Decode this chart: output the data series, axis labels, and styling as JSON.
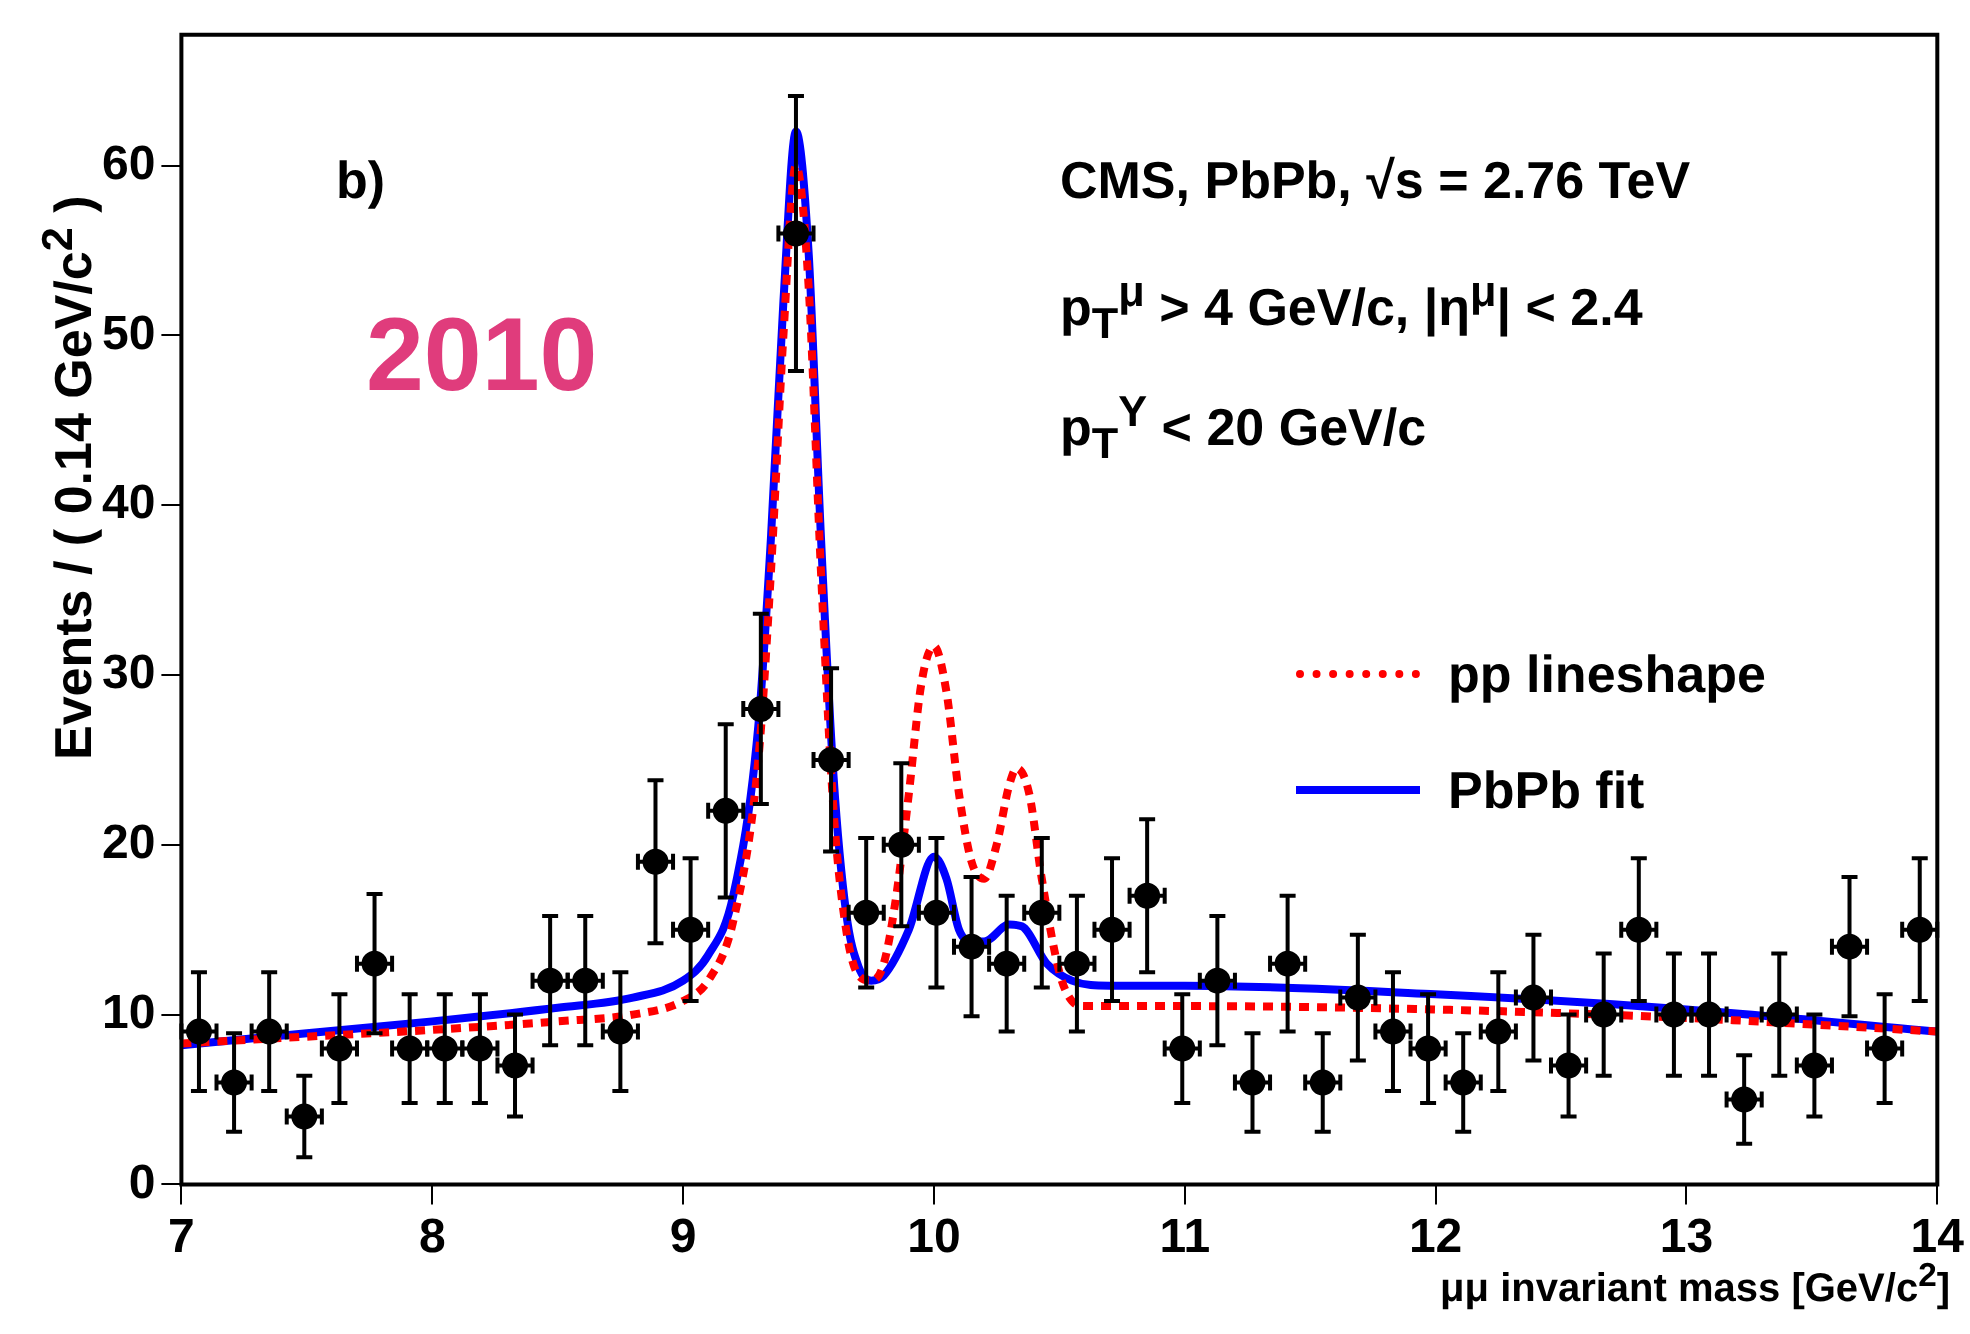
{
  "chart_data": {
    "type": "scatter",
    "xlabel": "μμ invariant mass [GeV/c$^{2}$]",
    "ylabel": "Events / ( 0.14 GeV/c$^{2}$ )",
    "annotations": [
      "b)",
      "2010",
      "CMS, PbPb, √s = 2.76 TeV",
      "p$_{T}$$^{μ}$ > 4 GeV/c, |η$^{μ}$| < 2.4",
      "p$_{T}$$^{Υ}$ < 20 GeV/c"
    ],
    "xlim": [
      7,
      14
    ],
    "ylim": [
      0,
      67.7
    ],
    "xticks": [
      7,
      8,
      9,
      10,
      11,
      12,
      13,
      14
    ],
    "yticks": [
      0,
      10,
      20,
      30,
      40,
      50,
      60
    ],
    "legend": "right",
    "series": [
      {
        "color": "#000000",
        "marker": "circle",
        "x": [
          7.07,
          7.21,
          7.35,
          7.49,
          7.63,
          7.77,
          7.91,
          8.05,
          8.19,
          8.33,
          8.47,
          8.61,
          8.75,
          8.89,
          9.03,
          9.17,
          9.31,
          9.45,
          9.59,
          9.73,
          9.87,
          10.01,
          10.15,
          10.29,
          10.43,
          10.57,
          10.71,
          10.85,
          10.99,
          11.13,
          11.27,
          11.41,
          11.55,
          11.69,
          11.83,
          11.97,
          12.11,
          12.25,
          12.39,
          12.53,
          12.67,
          12.81,
          12.95,
          13.09,
          13.23,
          13.37,
          13.51,
          13.65,
          13.79,
          13.93
        ],
        "values": [
          9,
          6,
          9,
          4,
          8,
          13,
          8,
          8,
          8,
          7,
          12,
          12,
          9,
          19,
          15,
          22,
          28,
          56,
          25,
          16,
          20,
          16,
          14,
          13,
          16,
          13,
          15,
          17,
          8,
          12,
          6,
          13,
          6,
          11,
          9,
          8,
          6,
          9,
          11,
          7,
          10,
          15,
          10,
          10,
          5,
          10,
          7,
          14,
          8,
          15
        ],
        "errors": [
          3.5,
          2.9,
          3.5,
          2.4,
          3.2,
          4.1,
          3.2,
          3.2,
          3.2,
          3,
          3.8,
          3.8,
          3.5,
          4.8,
          4.2,
          5.1,
          5.6,
          8.1,
          5.4,
          4.4,
          4.8,
          4.4,
          4.1,
          4,
          4.4,
          4,
          4.2,
          4.5,
          3.2,
          3.8,
          2.9,
          4,
          2.9,
          3.7,
          3.5,
          3.2,
          2.9,
          3.5,
          3.7,
          3,
          3.6,
          4.2,
          3.6,
          3.6,
          2.6,
          3.6,
          3,
          4.1,
          3.2,
          4.2
        ],
        "xerrors": [
          0.07,
          0.07,
          0.07,
          0.07,
          0.07,
          0.07,
          0.07,
          0.07,
          0.07,
          0.07,
          0.07,
          0.07,
          0.07,
          0.07,
          0.07,
          0.07,
          0.07,
          0.07,
          0.07,
          0.07,
          0.07,
          0.07,
          0.07,
          0.07,
          0.07,
          0.07,
          0.07,
          0.07,
          0.07,
          0.07,
          0.07,
          0.07,
          0.07,
          0.07,
          0.07,
          0.07,
          0.07,
          0.07,
          0.07,
          0.07,
          0.07,
          0.07,
          0.07,
          0.07,
          0.07,
          0.07,
          0.07,
          0.07,
          0.07,
          0.07
        ]
      },
      {
        "type": "line",
        "name": "pp lineshape",
        "color": "#ff0000",
        "marker": "none",
        "line_style": "dotted",
        "x": [
          7,
          7.5,
          8,
          8.5,
          8.8,
          9,
          9.1,
          9.2,
          9.3,
          9.35,
          9.4,
          9.45,
          9.5,
          9.55,
          9.6,
          9.65,
          9.7,
          9.75,
          9.8,
          9.85,
          9.9,
          9.95,
          10,
          10.05,
          10.1,
          10.15,
          10.2,
          10.25,
          10.3,
          10.33,
          10.38,
          10.43,
          10.5,
          10.55,
          10.6,
          11,
          12,
          13,
          14
        ],
        "values": [
          8.3,
          8.7,
          9.1,
          9.6,
          10,
          10.8,
          12,
          15.5,
          25,
          36,
          50,
          60,
          53,
          36,
          22,
          15,
          12.3,
          12,
          13,
          17,
          23,
          29.5,
          31.7,
          29,
          23,
          19,
          18,
          20,
          23.5,
          24.5,
          23,
          18,
          12.5,
          10.8,
          10.5,
          10.5,
          10.3,
          9.8,
          9
        ]
      },
      {
        "type": "line",
        "name": "PbPb fit",
        "color": "#0000ff",
        "marker": "none",
        "line_style": "solid",
        "x": [
          7,
          7.5,
          8,
          8.5,
          8.8,
          9,
          9.1,
          9.2,
          9.3,
          9.35,
          9.4,
          9.45,
          9.5,
          9.55,
          9.6,
          9.65,
          9.7,
          9.75,
          9.8,
          9.9,
          10,
          10.05,
          10.1,
          10.15,
          10.2,
          10.3,
          10.35,
          10.45,
          10.55,
          10.7,
          11,
          12,
          13,
          14
        ],
        "values": [
          8.2,
          8.9,
          9.6,
          10.4,
          11,
          12,
          13.5,
          17,
          27,
          38,
          52,
          62,
          55,
          38,
          24,
          16,
          12.8,
          12,
          12.3,
          15,
          19.3,
          18,
          15,
          14.3,
          14.3,
          15.3,
          15.2,
          13,
          12,
          11.7,
          11.7,
          11.2,
          10.3,
          9
        ]
      }
    ]
  }
}
